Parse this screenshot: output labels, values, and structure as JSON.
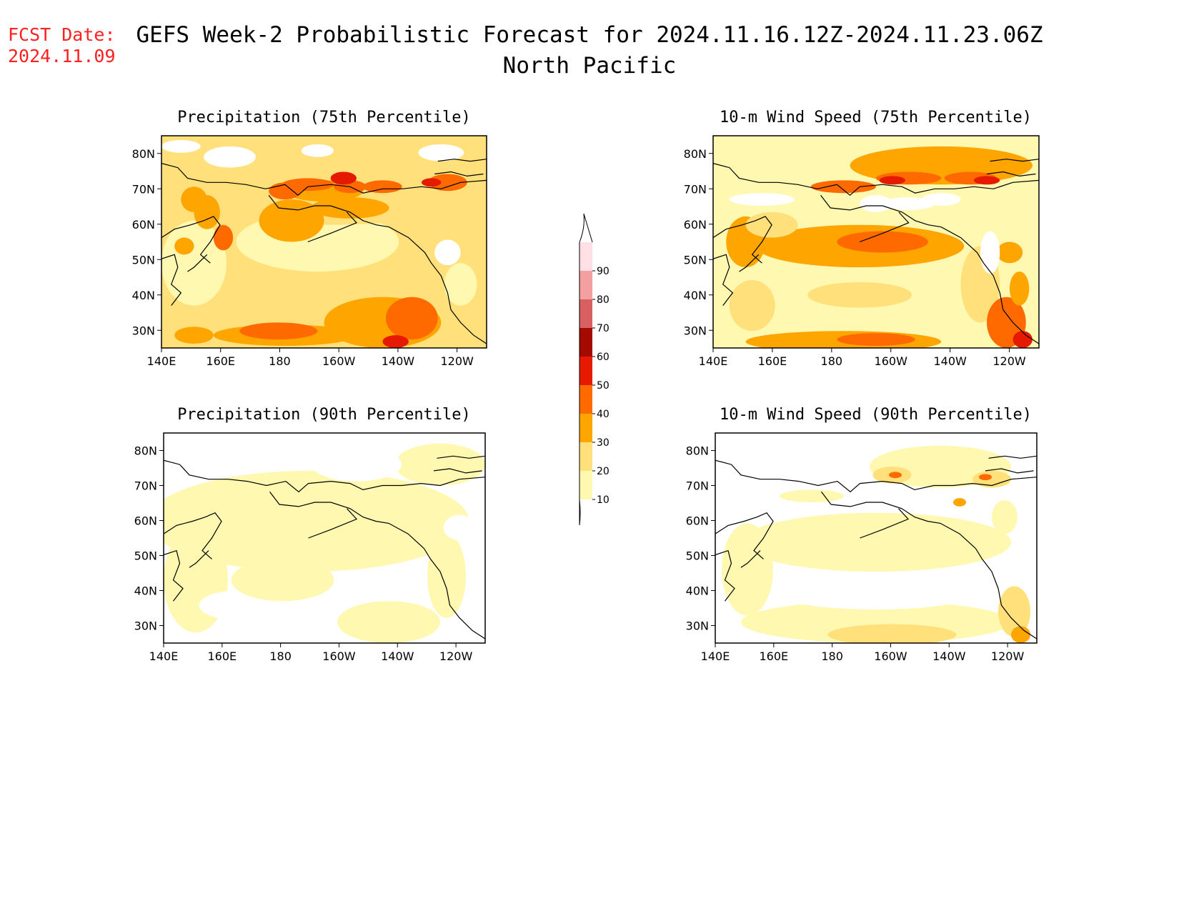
{
  "header": {
    "fcst_label": "FCST Date:",
    "fcst_date": "2024.11.09",
    "title": "GEFS Week-2 Probabilistic Forecast for 2024.11.16.12Z-2024.11.23.06Z",
    "subtitle": "North Pacific"
  },
  "panels": [
    {
      "title": "Precipitation (75th Percentile)"
    },
    {
      "title": "10-m Wind Speed (75th Percentile)"
    },
    {
      "title": "Precipitation (90th Percentile)"
    },
    {
      "title": "10-m Wind Speed (90th Percentile)"
    }
  ],
  "axes": {
    "lon_labels": [
      "140E",
      "160E",
      "180",
      "160W",
      "140W",
      "120W"
    ],
    "lat_labels": [
      "80N",
      "70N",
      "60N",
      "50N",
      "40N",
      "30N"
    ]
  },
  "colorbar": {
    "levels": [
      "10",
      "20",
      "30",
      "40",
      "50",
      "60",
      "70",
      "80",
      "90"
    ],
    "colors": [
      "#fff8b0",
      "#ffe07a",
      "#ffa500",
      "#ff6a00",
      "#e61a00",
      "#a50a00",
      "#d86060",
      "#f4a0a0",
      "#ffe0e4"
    ]
  }
}
